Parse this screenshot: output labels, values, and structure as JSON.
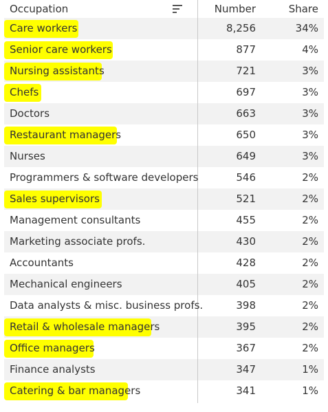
{
  "colors": {
    "highlight": "#ffff00",
    "row_alt": "#f2f2f2",
    "text": "#333333"
  },
  "header": {
    "occupation": "Occupation",
    "number": "Number",
    "share": "Share",
    "sort_icon": "sort-lines-icon"
  },
  "rows": [
    {
      "occupation": "Care workers",
      "number": "8,256",
      "share": "34%",
      "highlighted": true
    },
    {
      "occupation": "Senior care workers",
      "number": "877",
      "share": "4%",
      "highlighted": true
    },
    {
      "occupation": "Nursing assistants",
      "number": "721",
      "share": "3%",
      "highlighted": true
    },
    {
      "occupation": "Chefs",
      "number": "697",
      "share": "3%",
      "highlighted": true
    },
    {
      "occupation": "Doctors",
      "number": "663",
      "share": "3%",
      "highlighted": false
    },
    {
      "occupation": "Restaurant managers",
      "number": "650",
      "share": "3%",
      "highlighted": true
    },
    {
      "occupation": "Nurses",
      "number": "649",
      "share": "3%",
      "highlighted": false
    },
    {
      "occupation": "Programmers & software developers",
      "number": "546",
      "share": "2%",
      "highlighted": false
    },
    {
      "occupation": "Sales supervisors",
      "number": "521",
      "share": "2%",
      "highlighted": true
    },
    {
      "occupation": "Management consultants",
      "number": "455",
      "share": "2%",
      "highlighted": false
    },
    {
      "occupation": "Marketing associate profs.",
      "number": "430",
      "share": "2%",
      "highlighted": false
    },
    {
      "occupation": "Accountants",
      "number": "428",
      "share": "2%",
      "highlighted": false
    },
    {
      "occupation": "Mechanical engineers",
      "number": "405",
      "share": "2%",
      "highlighted": false
    },
    {
      "occupation": "Data analysts & misc. business profs.",
      "number": "398",
      "share": "2%",
      "highlighted": false
    },
    {
      "occupation": "Retail & wholesale managers",
      "number": "395",
      "share": "2%",
      "highlighted": true
    },
    {
      "occupation": "Office managers",
      "number": "367",
      "share": "2%",
      "highlighted": true
    },
    {
      "occupation": "Finance analysts",
      "number": "347",
      "share": "1%",
      "highlighted": false
    },
    {
      "occupation": "Catering & bar managers",
      "number": "341",
      "share": "1%",
      "highlighted": true
    }
  ]
}
